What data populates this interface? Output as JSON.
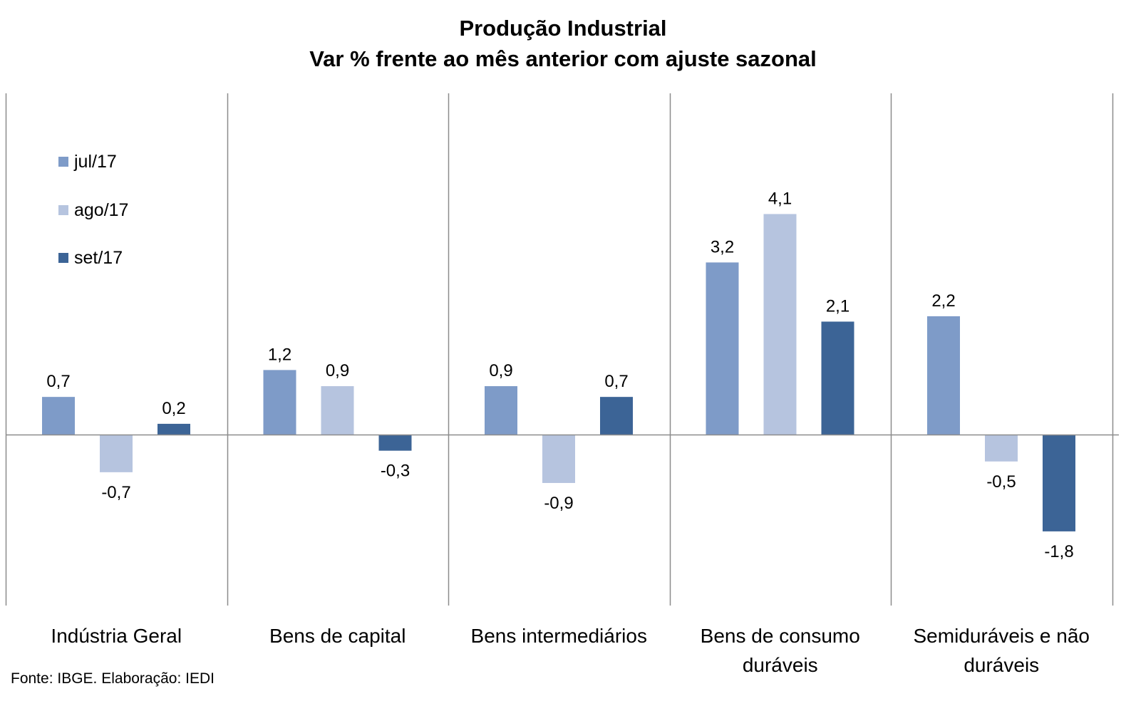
{
  "chart_data": {
    "type": "bar",
    "title": "Produção Industrial",
    "subtitle": "Var % frente ao mês anterior com ajuste sazonal",
    "categories": [
      "Indústria Geral",
      "Bens de capital",
      "Bens intermediários",
      "Bens de consumo duráveis",
      "Semiduráveis e não duráveis"
    ],
    "category_labels": [
      "Indústria Geral",
      "Bens de capital",
      "Bens intermediários",
      "Bens de consumo\nduráveis",
      "Semiduráveis e não\nduráveis"
    ],
    "series": [
      {
        "name": "jul/17",
        "color": "#7e9bc8",
        "values": [
          0.7,
          1.2,
          0.9,
          3.2,
          2.2
        ],
        "labels": [
          "0,7",
          "1,2",
          "0,9",
          "3,2",
          "2,2"
        ]
      },
      {
        "name": "ago/17",
        "color": "#b6c4df",
        "values": [
          -0.7,
          0.9,
          -0.9,
          4.1,
          -0.5
        ],
        "labels": [
          "-0,7",
          "0,9",
          "-0,9",
          "4,1",
          "-0,5"
        ]
      },
      {
        "name": "set/17",
        "color": "#3c6496",
        "values": [
          0.2,
          -0.3,
          0.7,
          2.1,
          -1.8
        ],
        "labels": [
          "0,2",
          "-0,3",
          "0,7",
          "2,1",
          "-1,8"
        ]
      }
    ],
    "ylim": [
      -2.5,
      5.0
    ],
    "legend_position": "top-left",
    "grid": false
  },
  "source": "Fonte: IBGE. Elaboração: IEDI"
}
